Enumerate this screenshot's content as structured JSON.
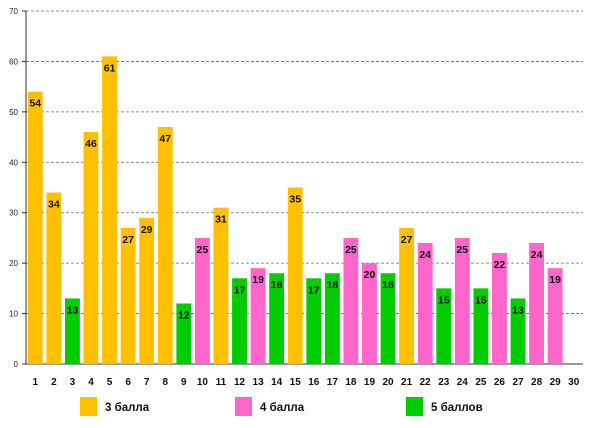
{
  "chart_data": {
    "type": "bar",
    "title": "",
    "xlabel": "",
    "ylabel": "",
    "ylim": [
      0,
      70
    ],
    "y_ticks": [
      0,
      10,
      20,
      30,
      40,
      50,
      60,
      70
    ],
    "grid": true,
    "legend_position": "bottom",
    "categories": [
      "1",
      "2",
      "3",
      "4",
      "5",
      "6",
      "7",
      "8",
      "9",
      "10",
      "11",
      "12",
      "13",
      "14",
      "15",
      "16",
      "17",
      "18",
      "19",
      "20",
      "21",
      "22",
      "23",
      "24",
      "25",
      "26",
      "27",
      "28",
      "29",
      "30"
    ],
    "values": [
      54,
      34,
      13,
      46,
      61,
      27,
      29,
      47,
      12,
      25,
      31,
      17,
      19,
      18,
      35,
      17,
      18,
      25,
      20,
      18,
      27,
      24,
      15,
      25,
      15,
      22,
      13,
      24,
      19,
      null
    ],
    "bar_series": [
      0,
      0,
      2,
      0,
      0,
      0,
      0,
      0,
      2,
      1,
      0,
      2,
      1,
      2,
      0,
      2,
      2,
      1,
      1,
      2,
      0,
      1,
      2,
      1,
      2,
      1,
      2,
      1,
      1,
      null
    ],
    "series": [
      {
        "name": "3 балла",
        "color": "#FFC000"
      },
      {
        "name": "4 балла",
        "color": "#FF66CC"
      },
      {
        "name": "5 баллов",
        "color": "#00CC00"
      }
    ]
  }
}
